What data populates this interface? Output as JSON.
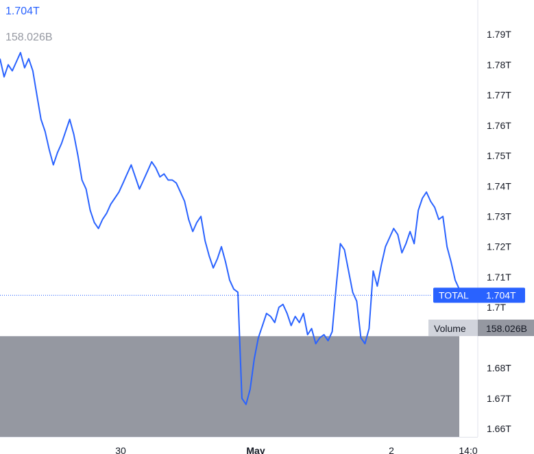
{
  "legend": {
    "price": "1.704T",
    "volume": "158.026B"
  },
  "colors": {
    "line": "#2962ff",
    "volume_area": "#9598a1",
    "badge": "#2962ff",
    "badge_text": "#ffffff",
    "axis_text": "#131722"
  },
  "chart_data": {
    "type": "line",
    "series": [
      {
        "values": [
          1.782,
          1.776,
          1.78,
          1.778,
          1.781,
          1.784,
          1.779,
          1.782,
          1.778,
          1.77,
          1.762,
          1.758,
          1.752,
          1.747,
          1.751,
          1.754,
          1.758,
          1.762,
          1.757,
          1.75,
          1.742,
          1.739,
          1.732,
          1.728,
          1.726,
          1.729,
          1.731,
          1.734,
          1.736,
          1.738,
          1.741,
          1.744,
          1.747,
          1.743,
          1.739,
          1.742,
          1.745,
          1.748,
          1.746,
          1.743,
          1.744,
          1.742,
          1.742,
          1.741,
          1.738,
          1.735,
          1.729,
          1.725,
          1.728,
          1.73,
          1.722,
          1.717,
          1.713,
          1.716,
          1.72,
          1.715,
          1.709,
          1.706,
          1.705,
          1.67,
          1.668,
          1.673,
          1.683,
          1.69,
          1.694,
          1.698,
          1.697,
          1.695,
          1.7,
          1.701,
          1.698,
          1.694,
          1.697,
          1.695,
          1.698,
          1.691,
          1.693,
          1.688,
          1.69,
          1.691,
          1.689,
          1.692,
          1.707,
          1.721,
          1.719,
          1.712,
          1.705,
          1.702,
          1.69,
          1.688,
          1.693,
          1.712,
          1.707,
          1.714,
          1.72,
          1.723,
          1.726,
          1.724,
          1.718,
          1.721,
          1.725,
          1.721,
          1.732,
          1.736,
          1.738,
          1.735,
          1.733,
          1.729,
          1.73,
          1.72,
          1.715,
          1.709,
          1.706
        ],
        "ylim": [
          1.653,
          1.8
        ]
      }
    ],
    "x_tick_labels": [
      "30",
      "May",
      "2",
      "14:0"
    ],
    "y_tick_labels": [
      "1.79T",
      "1.78T",
      "1.77T",
      "1.76T",
      "1.75T",
      "1.74T",
      "1.73T",
      "1.72T",
      "1.71T",
      "1.7T",
      "1.68T",
      "1.67T",
      "1.66T"
    ],
    "y_tick_values": [
      1.79,
      1.78,
      1.77,
      1.76,
      1.75,
      1.74,
      1.73,
      1.72,
      1.71,
      1.7,
      1.68,
      1.67,
      1.66
    ],
    "current_value": 1.704,
    "current_label": "TOTAL",
    "current_value_label": "1.704T",
    "volume_label": "Volume",
    "volume_value_label": "158.026B",
    "volume_top_value": 1.6905,
    "grid": false
  }
}
